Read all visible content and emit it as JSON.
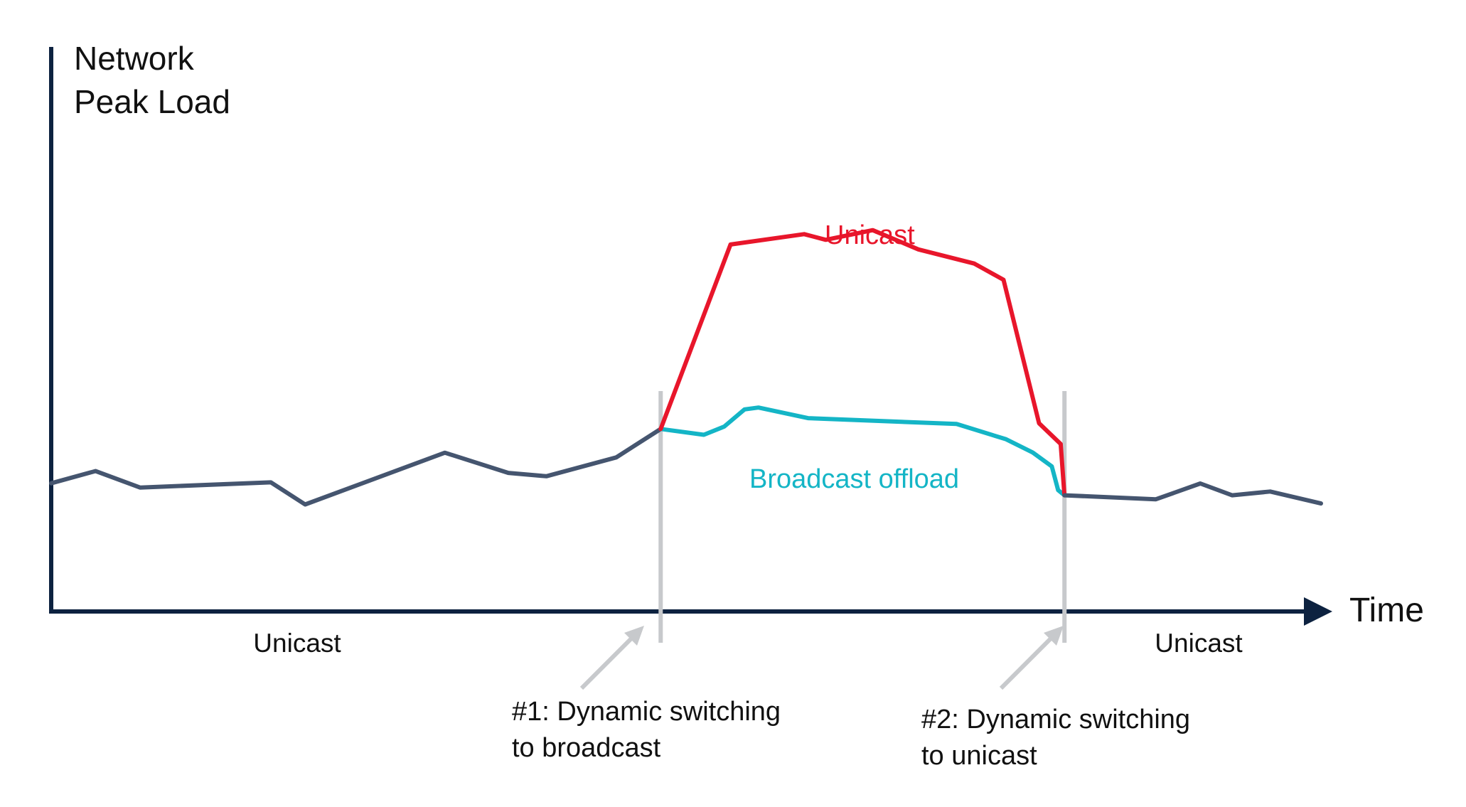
{
  "chart_data": {
    "type": "line",
    "ylabel_lines": [
      "Network",
      "Peak Load"
    ],
    "xlabel": "Time",
    "colors": {
      "axis": "#0d2240",
      "baseline": "#45556f",
      "unicast": "#e8162b",
      "broadcast": "#14b5c6",
      "marker": "#c7c9cc"
    },
    "series": [
      {
        "name": "Unicast",
        "role": "before",
        "points": [
          [
            0,
            0.545
          ],
          [
            3.5,
            0.597
          ],
          [
            7,
            0.527
          ],
          [
            17.3,
            0.549
          ],
          [
            20,
            0.455
          ],
          [
            31,
            0.675
          ],
          [
            36,
            0.589
          ],
          [
            39,
            0.575
          ],
          [
            44.5,
            0.655
          ],
          [
            48,
            0.776
          ]
        ]
      },
      {
        "name": "Unicast",
        "role": "peak",
        "points": [
          [
            48,
            0.776
          ],
          [
            53.5,
            1.56
          ],
          [
            59.3,
            1.604
          ],
          [
            61,
            1.58
          ],
          [
            64.7,
            1.621
          ],
          [
            68.3,
            1.539
          ],
          [
            72.7,
            1.479
          ],
          [
            75,
            1.41
          ],
          [
            77.8,
            0.8
          ],
          [
            79.5,
            0.712
          ],
          [
            79.8,
            0.494
          ]
        ]
      },
      {
        "name": "Broadcast offload",
        "role": "offload",
        "points": [
          [
            48,
            0.776
          ],
          [
            51.4,
            0.751
          ],
          [
            53,
            0.786
          ],
          [
            54.6,
            0.859
          ],
          [
            55.7,
            0.867
          ],
          [
            59.6,
            0.822
          ],
          [
            71.3,
            0.797
          ],
          [
            75.2,
            0.732
          ],
          [
            77.3,
            0.676
          ],
          [
            78.8,
            0.617
          ],
          [
            79.3,
            0.516
          ],
          [
            79.8,
            0.494
          ]
        ]
      },
      {
        "name": "Unicast",
        "role": "after",
        "points": [
          [
            79.8,
            0.494
          ],
          [
            87,
            0.477
          ],
          [
            90.5,
            0.544
          ],
          [
            93,
            0.494
          ],
          [
            96,
            0.51
          ],
          [
            100,
            0.459
          ]
        ]
      }
    ],
    "series_labels": {
      "unicast_peak": "Unicast",
      "broadcast_offload": "Broadcast offload"
    },
    "switch_markers": [
      {
        "x": 48,
        "label_lines": [
          "#1: Dynamic switching",
          "to broadcast"
        ]
      },
      {
        "x": 79.8,
        "label_lines": [
          "#2: Dynamic switching",
          "to unicast"
        ]
      }
    ],
    "regions": [
      {
        "label": "Unicast",
        "x_center": 19.2
      },
      {
        "label": "Unicast",
        "x_center": 90.3
      }
    ],
    "xlim": [
      0,
      100
    ],
    "ylim": [
      0,
      2.4
    ],
    "grid": false,
    "ticks": false
  }
}
